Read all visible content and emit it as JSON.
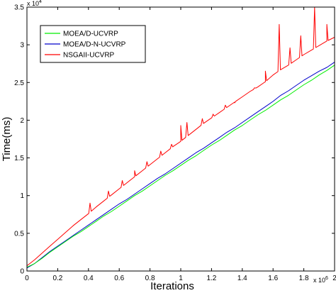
{
  "chart_data": {
    "type": "line",
    "title": "",
    "xlabel": "Iterations",
    "ylabel": "Time(ms)",
    "xlim": [
      0,
      2
    ],
    "ylim": [
      0,
      3.5
    ],
    "x_multiplier": {
      "base": "x 10",
      "exp": "6"
    },
    "y_multiplier": {
      "base": "x 10",
      "exp": "4"
    },
    "x_ticks": [
      0,
      0.2,
      0.4,
      0.6,
      0.8,
      1,
      1.2,
      1.4,
      1.6,
      1.8,
      2
    ],
    "x_tick_labels": [
      "0",
      "0.2",
      "0.4",
      "0.6",
      "0.8",
      "1",
      "1.2",
      "1.4",
      "1.6",
      "1.8",
      "2"
    ],
    "y_ticks": [
      0,
      0.5,
      1,
      1.5,
      2,
      2.5,
      3,
      3.5
    ],
    "y_tick_labels": [
      "0",
      "0.5",
      "1",
      "1.5",
      "2",
      "2.5",
      "3",
      "3.5"
    ],
    "grid": false,
    "legend_position": "top-left",
    "series": [
      {
        "name": "MOEA/D-UCVRP",
        "color": "#00ee00",
        "x": [
          0,
          0.05,
          0.1,
          0.15,
          0.2,
          0.25,
          0.3,
          0.35,
          0.4,
          0.45,
          0.5,
          0.55,
          0.6,
          0.65,
          0.7,
          0.75,
          0.8,
          0.85,
          0.9,
          0.95,
          1,
          1.05,
          1.1,
          1.15,
          1.2,
          1.25,
          1.3,
          1.35,
          1.4,
          1.45,
          1.5,
          1.55,
          1.6,
          1.65,
          1.7,
          1.75,
          1.8,
          1.85,
          1.9,
          1.95,
          2
        ],
        "y": [
          0.05,
          0.1,
          0.17,
          0.25,
          0.32,
          0.39,
          0.46,
          0.52,
          0.59,
          0.66,
          0.73,
          0.79,
          0.86,
          0.93,
          1.0,
          1.06,
          1.13,
          1.2,
          1.27,
          1.33,
          1.4,
          1.47,
          1.53,
          1.6,
          1.67,
          1.73,
          1.8,
          1.87,
          1.93,
          2.0,
          2.07,
          2.13,
          2.2,
          2.27,
          2.33,
          2.4,
          2.47,
          2.53,
          2.6,
          2.66,
          2.73
        ]
      },
      {
        "name": "MOEA/D-N-UCVRP",
        "color": "#0000cc",
        "x": [
          0,
          0.05,
          0.1,
          0.15,
          0.2,
          0.25,
          0.3,
          0.35,
          0.4,
          0.45,
          0.5,
          0.55,
          0.6,
          0.65,
          0.7,
          0.75,
          0.8,
          0.85,
          0.9,
          0.95,
          1,
          1.05,
          1.1,
          1.15,
          1.2,
          1.25,
          1.3,
          1.35,
          1.4,
          1.45,
          1.5,
          1.55,
          1.6,
          1.65,
          1.7,
          1.75,
          1.8,
          1.85,
          1.9,
          1.95,
          2
        ],
        "y": [
          0.04,
          0.1,
          0.18,
          0.26,
          0.33,
          0.4,
          0.47,
          0.54,
          0.61,
          0.68,
          0.75,
          0.82,
          0.89,
          0.95,
          1.02,
          1.09,
          1.16,
          1.23,
          1.29,
          1.36,
          1.43,
          1.5,
          1.57,
          1.63,
          1.7,
          1.77,
          1.84,
          1.9,
          1.97,
          2.04,
          2.11,
          2.18,
          2.25,
          2.33,
          2.39,
          2.46,
          2.53,
          2.59,
          2.65,
          2.7,
          2.77
        ]
      },
      {
        "name": "NSGAII-UCVRP",
        "color": "#ff0000",
        "x": [
          0,
          0.05,
          0.1,
          0.15,
          0.2,
          0.25,
          0.3,
          0.35,
          0.4,
          0.45,
          0.5,
          0.55,
          0.6,
          0.65,
          0.7,
          0.75,
          0.8,
          0.85,
          0.9,
          0.95,
          1,
          1.05,
          1.1,
          1.15,
          1.2,
          1.25,
          1.3,
          1.35,
          1.4,
          1.45,
          1.5,
          1.55,
          1.6,
          1.65,
          1.7,
          1.75,
          1.8,
          1.85,
          1.9,
          1.95,
          2
        ],
        "y": [
          0.07,
          0.15,
          0.24,
          0.33,
          0.42,
          0.51,
          0.6,
          0.68,
          0.76,
          0.85,
          0.93,
          1.01,
          1.09,
          1.17,
          1.25,
          1.33,
          1.41,
          1.49,
          1.57,
          1.65,
          1.72,
          1.8,
          1.88,
          1.96,
          2.03,
          2.1,
          2.17,
          2.24,
          2.31,
          2.38,
          2.44,
          2.51,
          2.6,
          2.67,
          2.73,
          2.8,
          2.87,
          2.93,
          2.99,
          3.05,
          3.1
        ]
      }
    ],
    "annotations": [
      {
        "series": "NSGAII-UCVRP",
        "type": "spike",
        "x": 0.41,
        "y": 0.9
      },
      {
        "series": "NSGAII-UCVRP",
        "type": "spike",
        "x": 0.53,
        "y": 1.06
      },
      {
        "series": "NSGAII-UCVRP",
        "type": "spike",
        "x": 0.62,
        "y": 1.2
      },
      {
        "series": "NSGAII-UCVRP",
        "type": "spike",
        "x": 0.7,
        "y": 1.33
      },
      {
        "series": "NSGAII-UCVRP",
        "type": "spike",
        "x": 0.78,
        "y": 1.45
      },
      {
        "series": "NSGAII-UCVRP",
        "type": "spike",
        "x": 0.87,
        "y": 1.59
      },
      {
        "series": "NSGAII-UCVRP",
        "type": "spike",
        "x": 0.94,
        "y": 1.68
      },
      {
        "series": "NSGAII-UCVRP",
        "type": "spike",
        "x": 1.0,
        "y": 1.93
      },
      {
        "series": "NSGAII-UCVRP",
        "type": "spike",
        "x": 1.04,
        "y": 1.97
      },
      {
        "series": "NSGAII-UCVRP",
        "type": "spike",
        "x": 1.14,
        "y": 2.02
      },
      {
        "series": "NSGAII-UCVRP",
        "type": "spike",
        "x": 1.21,
        "y": 2.08
      },
      {
        "series": "NSGAII-UCVRP",
        "type": "spike",
        "x": 1.29,
        "y": 2.2
      },
      {
        "series": "NSGAII-UCVRP",
        "type": "spike",
        "x": 1.35,
        "y": 2.23
      },
      {
        "series": "NSGAII-UCVRP",
        "type": "spike",
        "x": 1.48,
        "y": 2.43
      },
      {
        "series": "NSGAII-UCVRP",
        "type": "spike",
        "x": 1.55,
        "y": 2.65
      },
      {
        "series": "NSGAII-UCVRP",
        "type": "spike",
        "x": 1.64,
        "y": 3.27
      },
      {
        "series": "NSGAII-UCVRP",
        "type": "spike",
        "x": 1.71,
        "y": 2.96
      },
      {
        "series": "NSGAII-UCVRP",
        "type": "spike",
        "x": 1.78,
        "y": 3.12
      },
      {
        "series": "NSGAII-UCVRP",
        "type": "spike",
        "x": 1.87,
        "y": 3.5
      },
      {
        "series": "NSGAII-UCVRP",
        "type": "spike",
        "x": 1.95,
        "y": 3.27
      }
    ]
  }
}
